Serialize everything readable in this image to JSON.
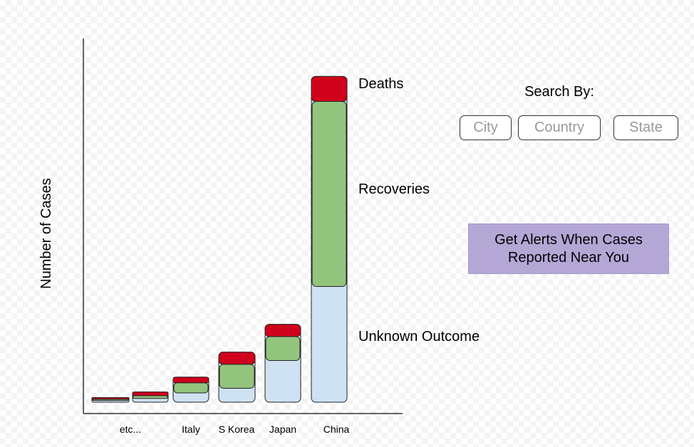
{
  "chart_data": {
    "type": "bar",
    "stacked": true,
    "ylabel": "Number of Cases",
    "xlabel": "",
    "categories": [
      "etc...",
      "Italy",
      "S Korea",
      "Japan",
      "China"
    ],
    "series": [
      {
        "name": "Unknown Outcome",
        "color": "#cfe2f3",
        "values": [
          4,
          10,
          15,
          45,
          125
        ]
      },
      {
        "name": "Recoveries",
        "color": "#93c47d",
        "values": [
          3,
          11,
          26,
          26,
          200
        ]
      },
      {
        "name": "Deaths",
        "color": "#d0021b",
        "values": [
          4,
          6,
          13,
          13,
          27
        ]
      }
    ],
    "ylim": [
      0,
      360
    ],
    "grid": false,
    "legend": "right"
  },
  "search": {
    "title": "Search By:",
    "city_label": "City",
    "country_label": "Country",
    "state_label": "State"
  },
  "alert": {
    "line1": "Get Alerts When Cases",
    "line2": "Reported Near You"
  }
}
